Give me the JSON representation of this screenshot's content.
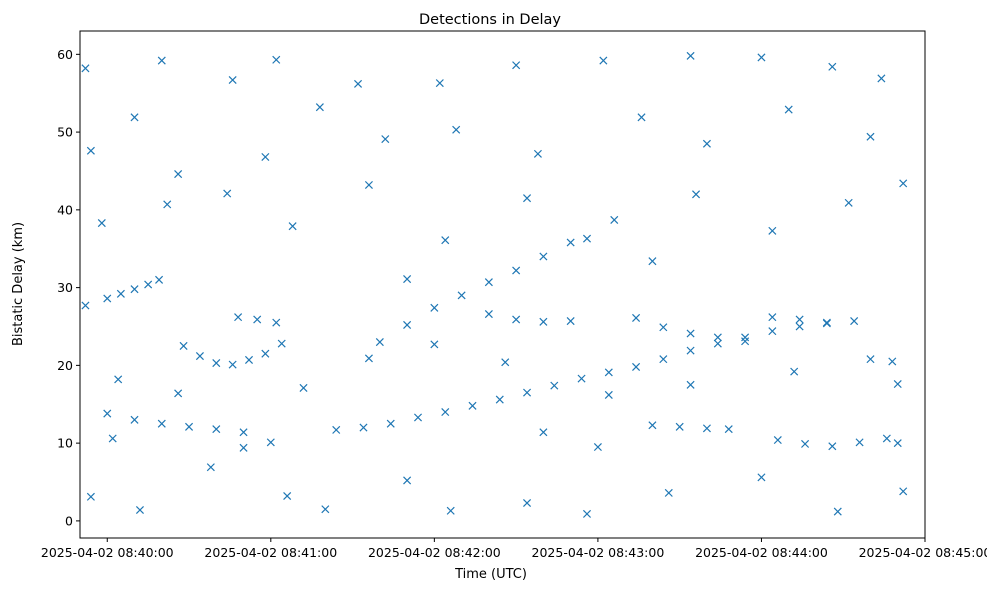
{
  "chart_data": {
    "type": "scatter",
    "title": "Detections in Delay",
    "xlabel": "Time (UTC)",
    "ylabel": "Bistatic Delay (km)",
    "x_tick_labels": [
      "2025-04-02 08:40:00",
      "2025-04-02 08:41:00",
      "2025-04-02 08:42:00",
      "2025-04-02 08:43:00",
      "2025-04-02 08:44:00",
      "2025-04-02 08:45:00"
    ],
    "y_ticks": [
      0,
      10,
      20,
      30,
      40,
      50,
      60
    ],
    "xlim": [
      "2025-04-02 08:39:50",
      "2025-04-02 08:45:00"
    ],
    "ylim": [
      -2.2,
      63
    ],
    "grid": false,
    "marker": "x",
    "color": "#1f77b4",
    "series": [
      {
        "points": [
          [
            "2025-04-02 08:39:52",
            27.7
          ],
          [
            "2025-04-02 08:40:00",
            28.6
          ],
          [
            "2025-04-02 08:40:05",
            29.2
          ],
          [
            "2025-04-02 08:40:10",
            29.8
          ],
          [
            "2025-04-02 08:40:15",
            30.4
          ],
          [
            "2025-04-02 08:40:19",
            31.0
          ],
          [
            "2025-04-02 08:40:28",
            22.5
          ],
          [
            "2025-04-02 08:40:34",
            21.2
          ],
          [
            "2025-04-02 08:40:40",
            20.3
          ],
          [
            "2025-04-02 08:40:46",
            20.1
          ],
          [
            "2025-04-02 08:40:52",
            20.7
          ],
          [
            "2025-04-02 08:40:58",
            21.5
          ],
          [
            "2025-04-02 08:41:04",
            22.8
          ],
          [
            "2025-04-02 08:40:48",
            26.2
          ],
          [
            "2025-04-02 08:40:55",
            25.9
          ],
          [
            "2025-04-02 08:41:02",
            25.5
          ],
          [
            "2025-04-02 08:40:00",
            13.8
          ],
          [
            "2025-04-02 08:40:10",
            13.0
          ],
          [
            "2025-04-02 08:40:20",
            12.5
          ],
          [
            "2025-04-02 08:40:30",
            12.1
          ],
          [
            "2025-04-02 08:40:40",
            11.8
          ],
          [
            "2025-04-02 08:40:50",
            11.4
          ],
          [
            "2025-04-02 08:41:24",
            11.7
          ],
          [
            "2025-04-02 08:41:34",
            12.0
          ],
          [
            "2025-04-02 08:41:44",
            12.5
          ],
          [
            "2025-04-02 08:41:54",
            13.3
          ],
          [
            "2025-04-02 08:42:04",
            14.0
          ],
          [
            "2025-04-02 08:42:14",
            14.8
          ],
          [
            "2025-04-02 08:42:24",
            15.6
          ],
          [
            "2025-04-02 08:42:34",
            16.5
          ],
          [
            "2025-04-02 08:42:44",
            17.4
          ],
          [
            "2025-04-02 08:42:54",
            18.3
          ],
          [
            "2025-04-02 08:43:04",
            19.1
          ],
          [
            "2025-04-02 08:43:14",
            19.8
          ],
          [
            "2025-04-02 08:43:24",
            20.8
          ],
          [
            "2025-04-02 08:43:34",
            21.9
          ],
          [
            "2025-04-02 08:43:44",
            22.8
          ],
          [
            "2025-04-02 08:43:54",
            23.6
          ],
          [
            "2025-04-02 08:44:04",
            24.4
          ],
          [
            "2025-04-02 08:44:14",
            25.0
          ],
          [
            "2025-04-02 08:44:24",
            25.4
          ],
          [
            "2025-04-02 08:44:34",
            25.7
          ],
          [
            "2025-04-02 08:41:40",
            23.0
          ],
          [
            "2025-04-02 08:41:50",
            25.2
          ],
          [
            "2025-04-02 08:42:00",
            27.4
          ],
          [
            "2025-04-02 08:42:10",
            29.0
          ],
          [
            "2025-04-02 08:42:20",
            30.7
          ],
          [
            "2025-04-02 08:42:30",
            32.2
          ],
          [
            "2025-04-02 08:42:40",
            34.0
          ],
          [
            "2025-04-02 08:42:50",
            35.8
          ],
          [
            "2025-04-02 08:42:56",
            36.3
          ],
          [
            "2025-04-02 08:42:20",
            26.6
          ],
          [
            "2025-04-02 08:42:30",
            25.9
          ],
          [
            "2025-04-02 08:42:40",
            25.6
          ],
          [
            "2025-04-02 08:42:50",
            25.7
          ],
          [
            "2025-04-02 08:43:14",
            26.1
          ],
          [
            "2025-04-02 08:43:24",
            24.9
          ],
          [
            "2025-04-02 08:43:34",
            24.1
          ],
          [
            "2025-04-02 08:43:44",
            23.6
          ],
          [
            "2025-04-02 08:43:54",
            23.1
          ],
          [
            "2025-04-02 08:44:04",
            26.2
          ],
          [
            "2025-04-02 08:44:14",
            25.9
          ],
          [
            "2025-04-02 08:44:24",
            25.5
          ],
          [
            "2025-04-02 08:43:20",
            12.3
          ],
          [
            "2025-04-02 08:43:30",
            12.1
          ],
          [
            "2025-04-02 08:43:40",
            11.9
          ],
          [
            "2025-04-02 08:43:48",
            11.8
          ],
          [
            "2025-04-02 08:44:06",
            10.4
          ],
          [
            "2025-04-02 08:44:16",
            9.9
          ],
          [
            "2025-04-02 08:44:26",
            9.6
          ],
          [
            "2025-04-02 08:44:36",
            10.1
          ],
          [
            "2025-04-02 08:44:46",
            10.6
          ],
          [
            "2025-04-02 08:44:40",
            20.8
          ],
          [
            "2025-04-02 08:44:48",
            20.5
          ],
          [
            "2025-04-02 08:39:52",
            58.2
          ],
          [
            "2025-04-02 08:40:20",
            59.2
          ],
          [
            "2025-04-02 08:40:46",
            56.7
          ],
          [
            "2025-04-02 08:41:02",
            59.3
          ],
          [
            "2025-04-02 08:41:32",
            56.2
          ],
          [
            "2025-04-02 08:42:02",
            56.3
          ],
          [
            "2025-04-02 08:42:30",
            58.6
          ],
          [
            "2025-04-02 08:43:02",
            59.2
          ],
          [
            "2025-04-02 08:43:34",
            59.8
          ],
          [
            "2025-04-02 08:44:00",
            59.6
          ],
          [
            "2025-04-02 08:44:26",
            58.4
          ],
          [
            "2025-04-02 08:44:44",
            56.9
          ],
          [
            "2025-04-02 08:39:54",
            47.6
          ],
          [
            "2025-04-02 08:40:10",
            51.9
          ],
          [
            "2025-04-02 08:40:26",
            44.6
          ],
          [
            "2025-04-02 08:40:58",
            46.8
          ],
          [
            "2025-04-02 08:41:18",
            53.2
          ],
          [
            "2025-04-02 08:41:42",
            49.1
          ],
          [
            "2025-04-02 08:42:08",
            50.3
          ],
          [
            "2025-04-02 08:42:38",
            47.2
          ],
          [
            "2025-04-02 08:43:16",
            51.9
          ],
          [
            "2025-04-02 08:43:40",
            48.5
          ],
          [
            "2025-04-02 08:44:10",
            52.9
          ],
          [
            "2025-04-02 08:44:40",
            49.4
          ],
          [
            "2025-04-02 08:39:58",
            38.3
          ],
          [
            "2025-04-02 08:40:22",
            40.7
          ],
          [
            "2025-04-02 08:40:44",
            42.1
          ],
          [
            "2025-04-02 08:41:08",
            37.9
          ],
          [
            "2025-04-02 08:41:36",
            43.2
          ],
          [
            "2025-04-02 08:42:04",
            36.1
          ],
          [
            "2025-04-02 08:42:34",
            41.5
          ],
          [
            "2025-04-02 08:43:06",
            38.7
          ],
          [
            "2025-04-02 08:43:36",
            42.0
          ],
          [
            "2025-04-02 08:44:04",
            37.3
          ],
          [
            "2025-04-02 08:44:32",
            40.9
          ],
          [
            "2025-04-02 08:44:52",
            43.4
          ],
          [
            "2025-04-02 08:40:04",
            18.2
          ],
          [
            "2025-04-02 08:40:26",
            16.4
          ],
          [
            "2025-04-02 08:41:12",
            17.1
          ],
          [
            "2025-04-02 08:41:36",
            20.9
          ],
          [
            "2025-04-02 08:42:00",
            22.7
          ],
          [
            "2025-04-02 08:42:26",
            20.4
          ],
          [
            "2025-04-02 08:43:04",
            16.2
          ],
          [
            "2025-04-02 08:43:34",
            17.5
          ],
          [
            "2025-04-02 08:44:12",
            19.2
          ],
          [
            "2025-04-02 08:44:50",
            17.6
          ],
          [
            "2025-04-02 08:41:50",
            31.1
          ],
          [
            "2025-04-02 08:43:20",
            33.4
          ],
          [
            "2025-04-02 08:39:54",
            3.1
          ],
          [
            "2025-04-02 08:40:12",
            1.4
          ],
          [
            "2025-04-02 08:40:38",
            6.9
          ],
          [
            "2025-04-02 08:41:06",
            3.2
          ],
          [
            "2025-04-02 08:41:20",
            1.5
          ],
          [
            "2025-04-02 08:41:50",
            5.2
          ],
          [
            "2025-04-02 08:42:06",
            1.3
          ],
          [
            "2025-04-02 08:42:34",
            2.3
          ],
          [
            "2025-04-02 08:42:56",
            0.9
          ],
          [
            "2025-04-02 08:43:26",
            3.6
          ],
          [
            "2025-04-02 08:44:00",
            5.6
          ],
          [
            "2025-04-02 08:44:28",
            1.2
          ],
          [
            "2025-04-02 08:44:52",
            3.8
          ],
          [
            "2025-04-02 08:40:02",
            10.6
          ],
          [
            "2025-04-02 08:40:50",
            9.4
          ],
          [
            "2025-04-02 08:41:00",
            10.1
          ],
          [
            "2025-04-02 08:42:40",
            11.4
          ],
          [
            "2025-04-02 08:43:00",
            9.5
          ],
          [
            "2025-04-02 08:44:50",
            10.0
          ]
        ]
      }
    ]
  }
}
